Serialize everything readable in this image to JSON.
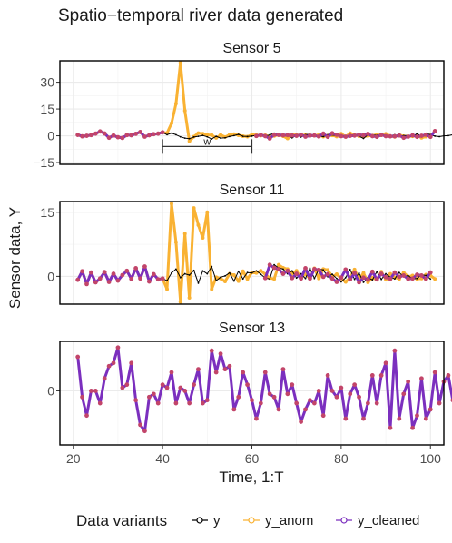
{
  "title": "Spatio−temporal river data generated",
  "chart_data": {
    "type": "line",
    "xlabel": "Time, 1:T",
    "ylabel": "Sensor data, Y",
    "xlim": [
      17,
      103
    ],
    "x_ticks": [
      20,
      40,
      60,
      80,
      100
    ],
    "x_tick_labels": [
      "20",
      "40",
      "60",
      "80",
      "100"
    ],
    "grid": true,
    "legend": {
      "title": "Data variants",
      "position": "bottom",
      "items": [
        {
          "label": "y",
          "color": "#000000"
        },
        {
          "label": "y_anom",
          "color": "#F9B233"
        },
        {
          "label": "y_cleaned",
          "color": "#7B2FBE"
        }
      ]
    },
    "panels": [
      {
        "title": "Sensor 5",
        "ylim": [
          -16,
          42
        ],
        "y_ticks": [
          -15,
          0,
          15,
          30
        ],
        "y_tick_labels": [
          "−15",
          "0",
          "15",
          "30"
        ],
        "annotation": {
          "label": "w",
          "x_start": 40,
          "x_end": 60
        },
        "x_start": 21,
        "series": [
          {
            "name": "y",
            "values": [
              0.5,
              -0.3,
              0,
              0.4,
              1.2,
              2.4,
              1.3,
              -1.1,
              0.2,
              -0.8,
              -1.2,
              0.4,
              0.3,
              1.1,
              2.1,
              -0.5,
              0.3,
              0.9,
              1.2,
              1.9,
              0.6,
              1.5,
              0.6,
              -0.6,
              -1.3,
              -1.6,
              -0.7,
              -0.3,
              0.2,
              -0.6,
              -1.8,
              -0.3,
              -1.3,
              -1.1,
              -0.4,
              0.1,
              0.8,
              -0.3,
              -0.4,
              -0.2,
              0.3,
              0.3,
              -0.2,
              0.5,
              1.5,
              1.2,
              0.5,
              0.4,
              -1.2,
              0.5,
              -0.7,
              0.6,
              0.9,
              0.3,
              -0.2,
              -0.5,
              0.6,
              0.4,
              0.1,
              0.3,
              -0.4,
              -0.1,
              0.5,
              -0.2,
              -1.5,
              0.6,
              0.5,
              0.3,
              0.4,
              0.2,
              0,
              0.6,
              -0.5,
              0.1,
              0.2,
              -0.4,
              1.2,
              -0.6,
              1.4,
              0.6,
              -0.2,
              -0.5,
              0,
              0.1,
              0.6,
              0.3,
              1.1,
              -0.2,
              -0.6,
              0.5,
              -0.2,
              -0.3,
              -0.3,
              0.2,
              -1.1,
              -0.5,
              0.3,
              -0.6,
              0,
              0.6,
              -0.6,
              0.2,
              -0.4,
              -0.5,
              2.6
            ]
          },
          {
            "name": "y_anom",
            "values": [
              0.5,
              -0.3,
              0,
              0.4,
              1.2,
              2.4,
              1.3,
              -1.1,
              0.2,
              -0.8,
              -1.2,
              0.4,
              0.3,
              1.1,
              2.1,
              -0.5,
              0.3,
              0.9,
              1.2,
              1.9,
              1.5,
              7,
              18,
              41,
              14,
              -3,
              -0.5,
              1.5,
              1.2,
              0.5,
              0.4,
              -1.2,
              0.5,
              -0.7,
              0.6,
              0.9,
              0.3,
              -0.2,
              -0.5,
              0.6,
              0.4,
              0.1,
              0.3,
              -0.4,
              -0.1,
              0.5,
              -0.2,
              -1.5,
              0.6,
              0.5,
              0.3,
              0.4,
              0.2,
              0,
              0.6,
              -0.5,
              0.1,
              0.2,
              -0.4,
              1.2,
              -0.6,
              1.4,
              0.6,
              -0.2,
              -0.5,
              0,
              0.1,
              0.6,
              0.3,
              1.1,
              -0.2,
              -0.6,
              0.5,
              -0.2,
              -0.3,
              -0.3,
              0.2,
              -1.1,
              -0.5,
              0.3
            ]
          },
          {
            "name": "y_cleaned",
            "values": [
              0.5,
              -0.3,
              0,
              0.4,
              1.2,
              2.4,
              1.3,
              -1.1,
              0.2,
              -0.8,
              -1.2,
              0.4,
              0.3,
              1.1,
              2.1,
              -0.5,
              0.3,
              0.9,
              1.2,
              1.9
            ]
          },
          {
            "name": "y_cleaned",
            "x_start": 61,
            "values": [
              -0.1,
              0.5,
              -0.2,
              -1.5,
              0.6,
              0.5,
              0.3,
              0.4,
              0.2,
              0,
              0.6,
              -0.5,
              0.1,
              0.2,
              -0.4,
              1.2,
              -0.6,
              1.4,
              0.6,
              -0.2,
              -0.5,
              0,
              0.1,
              0.6,
              0.3,
              1.1,
              -0.2,
              -0.6,
              0.5,
              -0.2,
              -0.3,
              -0.3,
              0.2,
              -1.1,
              -0.5,
              0.3,
              -0.6,
              0,
              0.6,
              -0.6,
              2.6
            ]
          }
        ]
      },
      {
        "title": "Sensor 11",
        "ylim": [
          -6.5,
          17.5
        ],
        "y_ticks": [
          0,
          15
        ],
        "y_tick_labels": [
          "0",
          "15"
        ],
        "x_start": 21,
        "series": [
          {
            "name": "y",
            "values": [
              -0.8,
              1.2,
              -1.8,
              0.9,
              -1.4,
              -0.5,
              1,
              -1.3,
              0.6,
              -1,
              0.3,
              1.3,
              -0.6,
              1.9,
              -0.5,
              2.3,
              -1.2,
              0.5,
              -0.7,
              -0.5,
              -1,
              0.8,
              1.7,
              -0.3,
              0.6,
              0.3,
              1.4,
              -1.6,
              1.3,
              0.6,
              2.3,
              -1,
              -0.2,
              0.1,
              0.8,
              -1.1,
              1.2,
              -0.6,
              0.9,
              0.8,
              1.3,
              0.5,
              -0.4,
              -0.6,
              2.7,
              2,
              1.7,
              0.6,
              1.3,
              -0.4,
              0.6,
              -0.5,
              1.9,
              -0.5,
              1.7,
              1.5,
              -0.1,
              0.5,
              -0.5,
              -1.3,
              -0.3,
              1.6,
              -0.7,
              0.8,
              -1.4,
              -0.3,
              -0.8,
              1.1,
              -0.7,
              0.6,
              -0.2,
              -0.6,
              0.9,
              -0.1,
              0.2,
              -0.6,
              -0.5,
              0.4,
              0.2,
              -0.6
            ]
          },
          {
            "name": "y_anom",
            "values": [
              -0.8,
              1.2,
              -1.8,
              0.9,
              -1.4,
              -0.5,
              1,
              -1.3,
              0.6,
              -1,
              0.3,
              1.3,
              -0.6,
              1.9,
              -0.5,
              2.3,
              -1.2,
              0.5,
              -0.7,
              -0.5,
              -3,
              17,
              8,
              -6,
              10,
              -5,
              16,
              12,
              9,
              15,
              -3,
              -0.2,
              -0.5,
              -1.2,
              0.6,
              0.3,
              -1.1,
              1.2,
              -0.6,
              0.9,
              0.8,
              1.3,
              0.5,
              -0.4,
              -0.6,
              2.7,
              2,
              1.7,
              0.6,
              1.3,
              -0.4,
              0.6,
              -0.5,
              1.9,
              -0.5,
              1.7,
              1.5,
              -0.1,
              0.5,
              -0.5,
              -1.3,
              -0.3,
              1.6,
              -0.7,
              0.8,
              -1.4,
              -0.3,
              -0.8,
              1.1,
              -0.7,
              0.6,
              -0.2,
              -0.6,
              0.9,
              -0.1,
              0.2,
              -0.6,
              -0.5,
              0.4,
              0.2,
              -0.6
            ]
          },
          {
            "name": "y_cleaned",
            "values": [
              -0.8,
              1.2,
              -1.8,
              0.9,
              -1.4,
              -0.5,
              1,
              -1.3,
              0.6,
              -1,
              0.3,
              1.3,
              -0.6,
              1.9,
              -0.5,
              2.3,
              -1.2,
              0.5,
              -0.7,
              -0.5
            ]
          },
          {
            "name": "y_cleaned",
            "x_start": 63,
            "values": [
              -0.4,
              2.7,
              2,
              1.7,
              0.6,
              1.3,
              -0.4,
              0.6,
              -0.5,
              1.9,
              -0.5,
              1.7,
              1.5,
              -0.1,
              0.5,
              -0.5,
              -1.3,
              -0.3,
              1.6,
              -0.7,
              0.8,
              -1.4,
              -0.3,
              -0.8,
              1.1,
              -0.7,
              0.6,
              -0.2,
              -0.6,
              0.9,
              -0.1,
              0.2,
              -0.6,
              -0.5,
              0.4,
              0.2,
              -0.6,
              0.9
            ]
          }
        ]
      },
      {
        "title": "Sensor 13",
        "ylim": [
          -1.75,
          1.6
        ],
        "y_ticks": [
          0
        ],
        "y_tick_labels": [
          "0"
        ],
        "x_start": 21,
        "series": [
          {
            "name": "y_cleaned",
            "values": [
              1.1,
              -0.2,
              -0.8,
              0,
              0,
              -0.4,
              0.4,
              0.8,
              0.9,
              1.4,
              0.1,
              0.2,
              0.9,
              -0.3,
              -1.1,
              -1.3,
              -0.2,
              -0.1,
              -0.4,
              0.2,
              0.1,
              0.6,
              -0.4,
              0.1,
              0,
              -0.4,
              0.2,
              0.7,
              -0.4,
              -0.3,
              1.3,
              0.6,
              1.2,
              0.7,
              0.8,
              -0.6,
              -0.2,
              0.6,
              0.2,
              -0.3,
              -0.9,
              -0.4,
              0.6,
              -0.1,
              -0.2,
              -0.6,
              0.7,
              -0.1,
              0.2,
              -0.4,
              -1,
              -0.6,
              -0.3,
              -0.4,
              0,
              -0.8,
              0.5,
              0,
              -0.2,
              0.1,
              -0.9,
              -0.1,
              0.2,
              -0.2,
              -0.9,
              -0.4,
              0.5,
              -0.4,
              0.5,
              0.9,
              -1.2,
              1.3,
              -0.9,
              -0.1,
              0.3,
              -1.2,
              -0.8,
              0.4,
              -0.9,
              -0.6,
              0.6,
              -0.4,
              0.3,
              0.5,
              -0.3,
              0.7,
              0.1,
              -0.7,
              0.2,
              0.1,
              -0.3,
              -0.5,
              -0.4,
              -0.2,
              -1.5,
              0.4,
              -0.1,
              -1.5,
              0.1,
              0.1,
              -0.1,
              -1.2,
              -0.1,
              0.1,
              -0.5,
              0.2,
              0.3,
              -0.3,
              -0.3,
              0.4,
              -0.3,
              0.3,
              -0.7,
              -0.6,
              0.1,
              0.5,
              -0.7,
              0.6,
              -0.8,
              0.2,
              0.7,
              -1.1,
              0.4
            ]
          }
        ]
      }
    ]
  }
}
